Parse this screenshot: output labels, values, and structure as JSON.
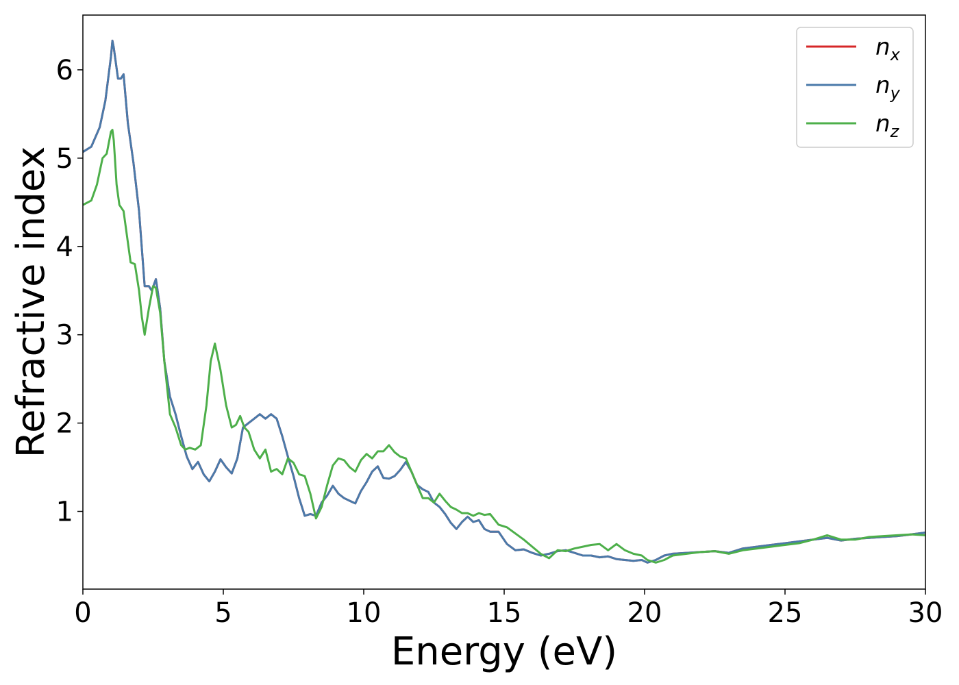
{
  "chart_data": {
    "type": "line",
    "xlabel": "Energy (eV)",
    "ylabel": "Refractive index",
    "xlim": [
      0,
      30
    ],
    "ylim": [
      0.12,
      6.62
    ],
    "xticks": [
      0,
      5,
      10,
      15,
      20,
      25,
      30
    ],
    "yticks": [
      1,
      2,
      3,
      4,
      5,
      6
    ],
    "grid": false,
    "legend_position": "top-right",
    "colors": {
      "n_x": "#d62728",
      "n_y": "#4a7aaa",
      "n_z": "#4daf4a"
    },
    "series": [
      {
        "name": "n_x",
        "base": "n",
        "sub": "x",
        "color": "#d62728",
        "x": [
          0,
          0.3,
          0.6,
          0.8,
          1.0,
          1.05,
          1.1,
          1.25,
          1.35,
          1.45,
          1.6,
          1.8,
          2.0,
          2.2,
          2.35,
          2.45,
          2.6,
          2.75,
          2.9,
          3.1,
          3.3,
          3.5,
          3.7,
          3.9,
          4.1,
          4.3,
          4.5,
          4.7,
          4.9,
          5.1,
          5.3,
          5.5,
          5.7,
          5.9,
          6.1,
          6.3,
          6.5,
          6.7,
          6.9,
          7.1,
          7.3,
          7.5,
          7.7,
          7.9,
          8.1,
          8.3,
          8.5,
          8.7,
          8.9,
          9.1,
          9.3,
          9.5,
          9.7,
          9.9,
          10.1,
          10.3,
          10.5,
          10.7,
          10.9,
          11.1,
          11.3,
          11.5,
          11.7,
          11.9,
          12.1,
          12.3,
          12.5,
          12.7,
          12.9,
          13.1,
          13.3,
          13.5,
          13.7,
          13.9,
          14.1,
          14.3,
          14.5,
          14.8,
          15.1,
          15.4,
          15.7,
          16.0,
          16.3,
          16.6,
          16.9,
          17.2,
          17.5,
          17.8,
          18.1,
          18.4,
          18.7,
          19.0,
          19.3,
          19.6,
          19.9,
          20.1,
          20.4,
          20.7,
          21.0,
          21.5,
          22.0,
          22.5,
          23.0,
          23.5,
          24.0,
          24.5,
          25.0,
          25.5,
          26.0,
          26.5,
          27.0,
          27.5,
          28.0,
          28.5,
          29.0,
          29.5,
          30.0
        ],
        "values": [
          5.07,
          5.13,
          5.35,
          5.65,
          6.15,
          6.33,
          6.25,
          5.9,
          5.9,
          5.95,
          5.4,
          4.95,
          4.4,
          3.55,
          3.55,
          3.5,
          3.63,
          3.3,
          2.7,
          2.3,
          2.1,
          1.85,
          1.62,
          1.48,
          1.56,
          1.42,
          1.34,
          1.45,
          1.59,
          1.5,
          1.43,
          1.6,
          1.95,
          2.0,
          2.05,
          2.1,
          2.05,
          2.1,
          2.05,
          1.85,
          1.62,
          1.4,
          1.15,
          0.95,
          0.97,
          0.95,
          1.1,
          1.18,
          1.29,
          1.2,
          1.15,
          1.12,
          1.09,
          1.23,
          1.33,
          1.45,
          1.51,
          1.38,
          1.37,
          1.4,
          1.47,
          1.56,
          1.45,
          1.3,
          1.25,
          1.22,
          1.1,
          1.05,
          0.97,
          0.87,
          0.8,
          0.88,
          0.94,
          0.88,
          0.9,
          0.8,
          0.77,
          0.77,
          0.63,
          0.56,
          0.57,
          0.53,
          0.5,
          0.52,
          0.55,
          0.56,
          0.53,
          0.5,
          0.5,
          0.48,
          0.49,
          0.46,
          0.45,
          0.44,
          0.45,
          0.42,
          0.45,
          0.5,
          0.52,
          0.53,
          0.54,
          0.55,
          0.53,
          0.58,
          0.6,
          0.62,
          0.64,
          0.66,
          0.68,
          0.7,
          0.67,
          0.69,
          0.7,
          0.71,
          0.72,
          0.74,
          0.76
        ]
      },
      {
        "name": "n_y",
        "base": "n",
        "sub": "y",
        "color": "#4a7aaa",
        "x": [
          0,
          0.3,
          0.6,
          0.8,
          1.0,
          1.05,
          1.1,
          1.25,
          1.35,
          1.45,
          1.6,
          1.8,
          2.0,
          2.2,
          2.35,
          2.45,
          2.6,
          2.75,
          2.9,
          3.1,
          3.3,
          3.5,
          3.7,
          3.9,
          4.1,
          4.3,
          4.5,
          4.7,
          4.9,
          5.1,
          5.3,
          5.5,
          5.7,
          5.9,
          6.1,
          6.3,
          6.5,
          6.7,
          6.9,
          7.1,
          7.3,
          7.5,
          7.7,
          7.9,
          8.1,
          8.3,
          8.5,
          8.7,
          8.9,
          9.1,
          9.3,
          9.5,
          9.7,
          9.9,
          10.1,
          10.3,
          10.5,
          10.7,
          10.9,
          11.1,
          11.3,
          11.5,
          11.7,
          11.9,
          12.1,
          12.3,
          12.5,
          12.7,
          12.9,
          13.1,
          13.3,
          13.5,
          13.7,
          13.9,
          14.1,
          14.3,
          14.5,
          14.8,
          15.1,
          15.4,
          15.7,
          16.0,
          16.3,
          16.6,
          16.9,
          17.2,
          17.5,
          17.8,
          18.1,
          18.4,
          18.7,
          19.0,
          19.3,
          19.6,
          19.9,
          20.1,
          20.4,
          20.7,
          21.0,
          21.5,
          22.0,
          22.5,
          23.0,
          23.5,
          24.0,
          24.5,
          25.0,
          25.5,
          26.0,
          26.5,
          27.0,
          27.5,
          28.0,
          28.5,
          29.0,
          29.5,
          30.0
        ],
        "values": [
          5.07,
          5.13,
          5.35,
          5.65,
          6.15,
          6.33,
          6.25,
          5.9,
          5.9,
          5.95,
          5.4,
          4.95,
          4.4,
          3.55,
          3.55,
          3.5,
          3.63,
          3.3,
          2.7,
          2.3,
          2.1,
          1.85,
          1.62,
          1.48,
          1.56,
          1.42,
          1.34,
          1.45,
          1.59,
          1.5,
          1.43,
          1.6,
          1.95,
          2.0,
          2.05,
          2.1,
          2.05,
          2.1,
          2.05,
          1.85,
          1.62,
          1.4,
          1.15,
          0.95,
          0.97,
          0.95,
          1.1,
          1.18,
          1.29,
          1.2,
          1.15,
          1.12,
          1.09,
          1.23,
          1.33,
          1.45,
          1.51,
          1.38,
          1.37,
          1.4,
          1.47,
          1.56,
          1.45,
          1.3,
          1.25,
          1.22,
          1.1,
          1.05,
          0.97,
          0.87,
          0.8,
          0.88,
          0.94,
          0.88,
          0.9,
          0.8,
          0.77,
          0.77,
          0.63,
          0.56,
          0.57,
          0.53,
          0.5,
          0.52,
          0.55,
          0.56,
          0.53,
          0.5,
          0.5,
          0.48,
          0.49,
          0.46,
          0.45,
          0.44,
          0.45,
          0.42,
          0.45,
          0.5,
          0.52,
          0.53,
          0.54,
          0.55,
          0.53,
          0.58,
          0.6,
          0.62,
          0.64,
          0.66,
          0.68,
          0.7,
          0.67,
          0.69,
          0.7,
          0.71,
          0.72,
          0.74,
          0.76
        ]
      },
      {
        "name": "n_z",
        "base": "n",
        "sub": "z",
        "color": "#4daf4a",
        "x": [
          0,
          0.3,
          0.5,
          0.7,
          0.85,
          1.0,
          1.05,
          1.1,
          1.2,
          1.3,
          1.45,
          1.6,
          1.7,
          1.85,
          2.0,
          2.1,
          2.2,
          2.35,
          2.5,
          2.6,
          2.75,
          2.9,
          3.1,
          3.3,
          3.5,
          3.65,
          3.8,
          4.0,
          4.2,
          4.4,
          4.55,
          4.7,
          4.9,
          5.1,
          5.3,
          5.45,
          5.6,
          5.75,
          5.9,
          6.1,
          6.3,
          6.5,
          6.7,
          6.9,
          7.1,
          7.3,
          7.5,
          7.7,
          7.9,
          8.1,
          8.3,
          8.5,
          8.7,
          8.9,
          9.1,
          9.3,
          9.5,
          9.7,
          9.9,
          10.1,
          10.3,
          10.5,
          10.7,
          10.9,
          11.1,
          11.3,
          11.5,
          11.7,
          11.9,
          12.1,
          12.3,
          12.5,
          12.7,
          12.9,
          13.1,
          13.3,
          13.5,
          13.7,
          13.9,
          14.1,
          14.3,
          14.5,
          14.8,
          15.1,
          15.4,
          15.7,
          16.0,
          16.3,
          16.6,
          16.9,
          17.2,
          17.5,
          17.8,
          18.1,
          18.4,
          18.7,
          19.0,
          19.3,
          19.6,
          19.9,
          20.1,
          20.4,
          20.7,
          21.0,
          21.5,
          22.0,
          22.5,
          23.0,
          23.5,
          24.0,
          24.5,
          25.0,
          25.5,
          26.0,
          26.5,
          27.0,
          27.5,
          28.0,
          28.5,
          29.0,
          29.5,
          30.0
        ],
        "values": [
          4.47,
          4.52,
          4.7,
          5.0,
          5.05,
          5.3,
          5.32,
          5.2,
          4.7,
          4.47,
          4.4,
          4.05,
          3.82,
          3.8,
          3.5,
          3.2,
          3.0,
          3.3,
          3.55,
          3.53,
          3.25,
          2.7,
          2.1,
          1.95,
          1.75,
          1.7,
          1.72,
          1.7,
          1.75,
          2.2,
          2.7,
          2.9,
          2.6,
          2.2,
          1.95,
          1.98,
          2.08,
          1.95,
          1.9,
          1.7,
          1.6,
          1.7,
          1.45,
          1.48,
          1.42,
          1.6,
          1.55,
          1.42,
          1.4,
          1.2,
          0.92,
          1.05,
          1.3,
          1.52,
          1.6,
          1.58,
          1.5,
          1.45,
          1.58,
          1.65,
          1.6,
          1.68,
          1.68,
          1.75,
          1.67,
          1.62,
          1.6,
          1.45,
          1.3,
          1.15,
          1.15,
          1.1,
          1.2,
          1.12,
          1.05,
          1.02,
          0.98,
          0.98,
          0.95,
          0.98,
          0.96,
          0.97,
          0.85,
          0.82,
          0.75,
          0.68,
          0.6,
          0.52,
          0.47,
          0.56,
          0.55,
          0.58,
          0.6,
          0.62,
          0.63,
          0.56,
          0.63,
          0.56,
          0.52,
          0.5,
          0.45,
          0.42,
          0.45,
          0.5,
          0.52,
          0.54,
          0.55,
          0.52,
          0.56,
          0.58,
          0.6,
          0.62,
          0.64,
          0.68,
          0.73,
          0.68,
          0.68,
          0.71,
          0.72,
          0.73,
          0.74,
          0.73
        ]
      }
    ]
  }
}
